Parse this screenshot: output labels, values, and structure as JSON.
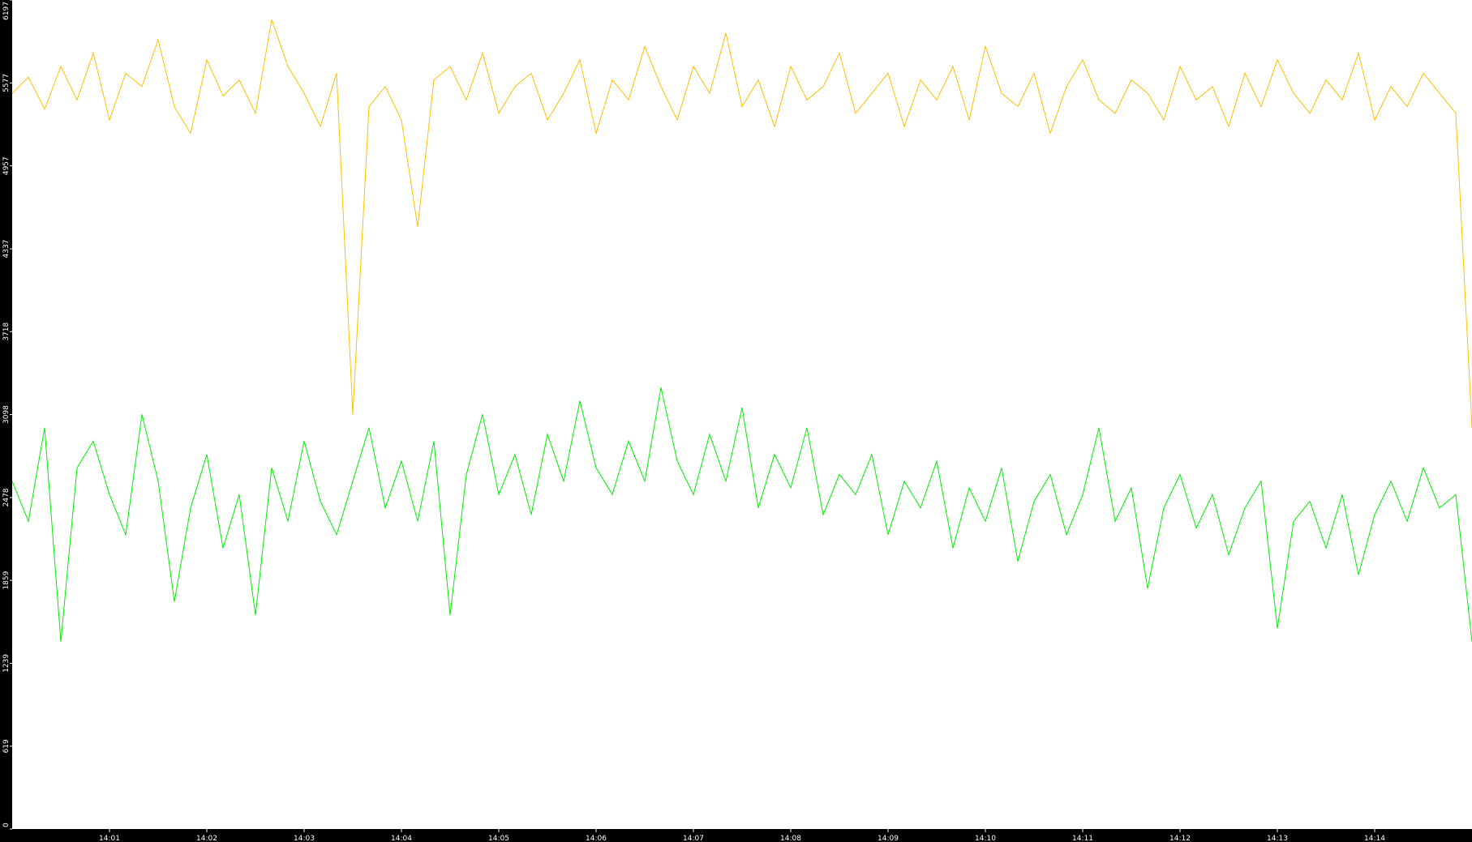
{
  "chart_data": {
    "type": "line",
    "title": "",
    "xlabel": "",
    "ylabel": "",
    "xlim": [
      "14:00:00",
      "14:15:00"
    ],
    "ylim": [
      0,
      6197
    ],
    "grid": false,
    "background": "#ffffff",
    "axis_background": "#000000",
    "y_ticks": [
      "0",
      "619",
      "1239",
      "1859",
      "2478",
      "3098",
      "3718",
      "4337",
      "4957",
      "5577",
      "6197"
    ],
    "x_ticks": [
      "14:01",
      "14:02",
      "14:03",
      "14:04",
      "14:05",
      "14:06",
      "14:07",
      "14:08",
      "14:09",
      "14:10",
      "14:11",
      "14:12",
      "14:13",
      "14:14"
    ],
    "sample_interval_seconds": 10,
    "series": [
      {
        "color": "#ffc000",
        "values": [
          5500,
          5620,
          5380,
          5700,
          5450,
          5800,
          5300,
          5650,
          5550,
          5900,
          5400,
          5200,
          5750,
          5480,
          5600,
          5350,
          6050,
          5700,
          5500,
          5250,
          5650,
          3100,
          5400,
          5550,
          5300,
          4500,
          5600,
          5700,
          5450,
          5800,
          5350,
          5550,
          5650,
          5300,
          5500,
          5750,
          5200,
          5600,
          5450,
          5850,
          5550,
          5300,
          5700,
          5500,
          5950,
          5400,
          5600,
          5250,
          5700,
          5450,
          5550,
          5800,
          5350,
          5500,
          5650,
          5250,
          5600,
          5450,
          5700,
          5300,
          5850,
          5500,
          5400,
          5650,
          5200,
          5550,
          5750,
          5450,
          5350,
          5600,
          5500,
          5300,
          5700,
          5450,
          5550,
          5250,
          5650,
          5400,
          5750,
          5500,
          5350,
          5600,
          5450,
          5800,
          5300,
          5550,
          5400,
          5650,
          5500,
          5350,
          3000
        ]
      },
      {
        "color": "#00ee00",
        "values": [
          2600,
          2300,
          3000,
          1400,
          2700,
          2900,
          2500,
          2200,
          3100,
          2600,
          1700,
          2400,
          2800,
          2100,
          2500,
          1600,
          2700,
          2300,
          2900,
          2450,
          2200,
          2600,
          3000,
          2400,
          2750,
          2300,
          2900,
          1600,
          2650,
          3100,
          2500,
          2800,
          2350,
          2950,
          2600,
          3200,
          2700,
          2500,
          2900,
          2600,
          3300,
          2750,
          2500,
          2950,
          2600,
          3150,
          2400,
          2800,
          2550,
          3000,
          2350,
          2650,
          2500,
          2800,
          2200,
          2600,
          2400,
          2750,
          2100,
          2550,
          2300,
          2700,
          2000,
          2450,
          2650,
          2200,
          2500,
          3000,
          2300,
          2550,
          1800,
          2400,
          2650,
          2250,
          2500,
          2050,
          2400,
          2600,
          1500,
          2300,
          2450,
          2100,
          2500,
          1900,
          2350,
          2600,
          2300,
          2700,
          2400,
          2500,
          1400
        ]
      }
    ]
  }
}
